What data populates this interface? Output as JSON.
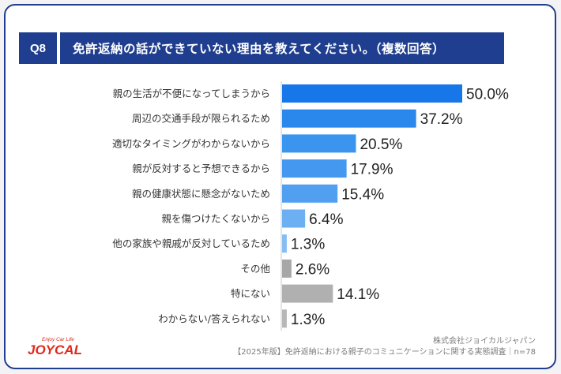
{
  "header": {
    "badge": "Q8",
    "title": "免許返納の話ができていない理由を教えてください。（複数回答）"
  },
  "footer": {
    "company": "株式会社ジョイカルジャパン",
    "survey": "【2025年版】免許返納における親子のコミュニケーションに関する実態調査｜n=78"
  },
  "logo": {
    "tagline": "Enjoy Car Life",
    "brand": "JOYCAL"
  },
  "colors": {
    "header_bg": "#1f3e8f",
    "bar_gradient": [
      "#1776e8",
      "#2a87ec",
      "#3b94ee",
      "#4598ef",
      "#509ff0",
      "#6cb0f3",
      "#86bdf5",
      "#a7a7a7",
      "#b0b0b0",
      "#b7b7b7"
    ]
  },
  "chart_data": {
    "type": "bar",
    "orientation": "horizontal",
    "title": "免許返納の話ができていない理由を教えてください。（複数回答）",
    "xlabel": "",
    "ylabel": "",
    "unit": "%",
    "xlim": [
      0,
      50
    ],
    "categories": [
      "親の生活が不便になってしまうから",
      "周辺の交通手段が限られるため",
      "適切なタイミングがわからないから",
      "親が反対すると予想できるから",
      "親の健康状態に懸念がないため",
      "親を傷つけたくないから",
      "他の家族や親戚が反対しているため",
      "その他",
      "特にない",
      "わからない/答えられない"
    ],
    "values": [
      50.0,
      37.2,
      20.5,
      17.9,
      15.4,
      6.4,
      1.3,
      2.6,
      14.1,
      1.3
    ],
    "labels": [
      "50.0%",
      "37.2%",
      "20.5%",
      "17.9%",
      "15.4%",
      "6.4%",
      "1.3%",
      "2.6%",
      "14.1%",
      "1.3%"
    ]
  }
}
